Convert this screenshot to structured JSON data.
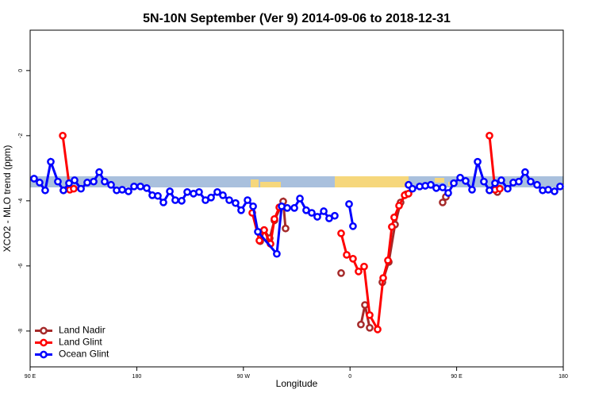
{
  "chart_data": {
    "type": "line",
    "title": "5N-10N September (Ver 9)   2014-09-06 to 2018-12-31",
    "x_label": "Longitude",
    "y_label": "XCO2 - MLO trend (ppm)",
    "xlim": [
      90,
      540
    ],
    "xticks": [
      {
        "value": 90,
        "label": "90 E"
      },
      {
        "value": 180,
        "label": "180"
      },
      {
        "value": 270,
        "label": "90 W"
      },
      {
        "value": 360,
        "label": "0"
      },
      {
        "value": 450,
        "label": "90 E"
      },
      {
        "value": 540,
        "label": "180"
      }
    ],
    "ylim": [
      -9.1,
      1.24
    ],
    "yticks": [
      0,
      -2,
      -4,
      -6,
      -8
    ],
    "legend": "bottom-left",
    "series": [
      {
        "name": "Land Nadir",
        "color": "#a52a2a",
        "x": [
          118.1,
          null,
          284.2,
          287.5,
          292.2,
          296.2,
          303.6,
          305.6,
          null,
          352.5,
          null,
          369.2,
          372.6,
          376.6,
          null,
          387.3,
          392.7,
          398.0,
          402.7,
          407.4,
          null,
          438.2,
          440.9,
          null,
          477.7,
          484.4
        ],
        "values": [
          -3.68,
          null,
          -5.24,
          -4.9,
          -5.15,
          -4.6,
          -4.02,
          -4.85,
          null,
          -6.22,
          null,
          -7.8,
          -7.2,
          -7.9,
          null,
          -6.5,
          -5.88,
          -4.73,
          -4.05,
          -3.8,
          null,
          -4.05,
          -3.88,
          null,
          -3.68,
          -3.73
        ]
      },
      {
        "name": "Land Glint",
        "color": "#ff0000",
        "x": [
          117.5,
          123.5,
          126.8,
          null,
          277.5,
          283.5,
          287.5,
          292.9,
          296.2,
          300.3,
          null,
          352.5,
          357.2,
          362.5,
          367.2,
          371.9,
          376.6,
          383.3,
          388.0,
          392.0,
          395.3,
          397.3,
          401.4,
          406.1,
          409.4,
          null,
          477.7,
          482.4,
          486.4
        ],
        "values": [
          -2.0,
          -3.66,
          -3.63,
          null,
          -4.37,
          -5.22,
          -4.9,
          -5.32,
          -4.56,
          -4.2,
          null,
          -5.0,
          -5.66,
          -5.78,
          -6.17,
          -6.02,
          -7.51,
          -7.95,
          -6.37,
          -5.83,
          -4.8,
          -4.51,
          -4.15,
          -3.83,
          -3.78,
          null,
          -2.0,
          -3.66,
          -3.63
        ]
      },
      {
        "name": "Ocean Glint",
        "color": "#0000ff",
        "x": [
          93.3,
          98.0,
          102.7,
          107.4,
          113.4,
          118.1,
          122.8,
          127.5,
          132.9,
          138.2,
          143.6,
          148.3,
          152.9,
          158.3,
          163.0,
          167.7,
          173.0,
          177.7,
          183.1,
          188.4,
          193.1,
          197.8,
          202.5,
          207.9,
          212.5,
          217.9,
          222.6,
          227.9,
          232.6,
          238.0,
          242.7,
          248.0,
          252.7,
          258.1,
          263.4,
          268.1,
          273.5,
          278.2,
          282.2,
          298.2,
          302.3,
          307.0,
          313.0,
          317.7,
          323.0,
          327.7,
          332.4,
          337.8,
          342.4,
          347.1,
          null,
          359.2,
          362.5,
          null,
          409.4,
          412.7,
          418.8,
          423.5,
          428.2,
          432.8,
          438.2,
          442.9,
          447.6,
          453.0,
          457.6,
          463.0,
          467.7,
          473.0,
          477.7,
          482.4,
          487.7,
          493.1,
          497.8,
          502.5,
          507.8,
          512.5,
          517.9,
          522.6,
          527.3,
          532.6,
          537.3
        ],
        "values": [
          -3.32,
          -3.44,
          -3.68,
          -2.8,
          -3.41,
          -3.68,
          -3.46,
          -3.37,
          -3.63,
          -3.44,
          -3.41,
          -3.12,
          -3.41,
          -3.51,
          -3.68,
          -3.66,
          -3.71,
          -3.56,
          -3.56,
          -3.61,
          -3.83,
          -3.85,
          -4.05,
          -3.71,
          -3.98,
          -4.0,
          -3.73,
          -3.78,
          -3.73,
          -3.98,
          -3.9,
          -3.73,
          -3.83,
          -3.98,
          -4.07,
          -4.29,
          -3.98,
          -4.17,
          -4.95,
          -5.63,
          -4.17,
          -4.22,
          -4.22,
          -3.93,
          -4.29,
          -4.37,
          -4.49,
          -4.32,
          -4.54,
          -4.46,
          null,
          -4.1,
          -4.78,
          null,
          -3.51,
          -3.63,
          -3.56,
          -3.54,
          -3.51,
          -3.61,
          -3.59,
          -3.76,
          -3.46,
          -3.29,
          -3.39,
          -3.66,
          -2.8,
          -3.41,
          -3.68,
          -3.46,
          -3.37,
          -3.63,
          -3.44,
          -3.41,
          -3.12,
          -3.41,
          -3.51,
          -3.68,
          -3.66,
          -3.71,
          -3.56
        ]
      }
    ]
  }
}
